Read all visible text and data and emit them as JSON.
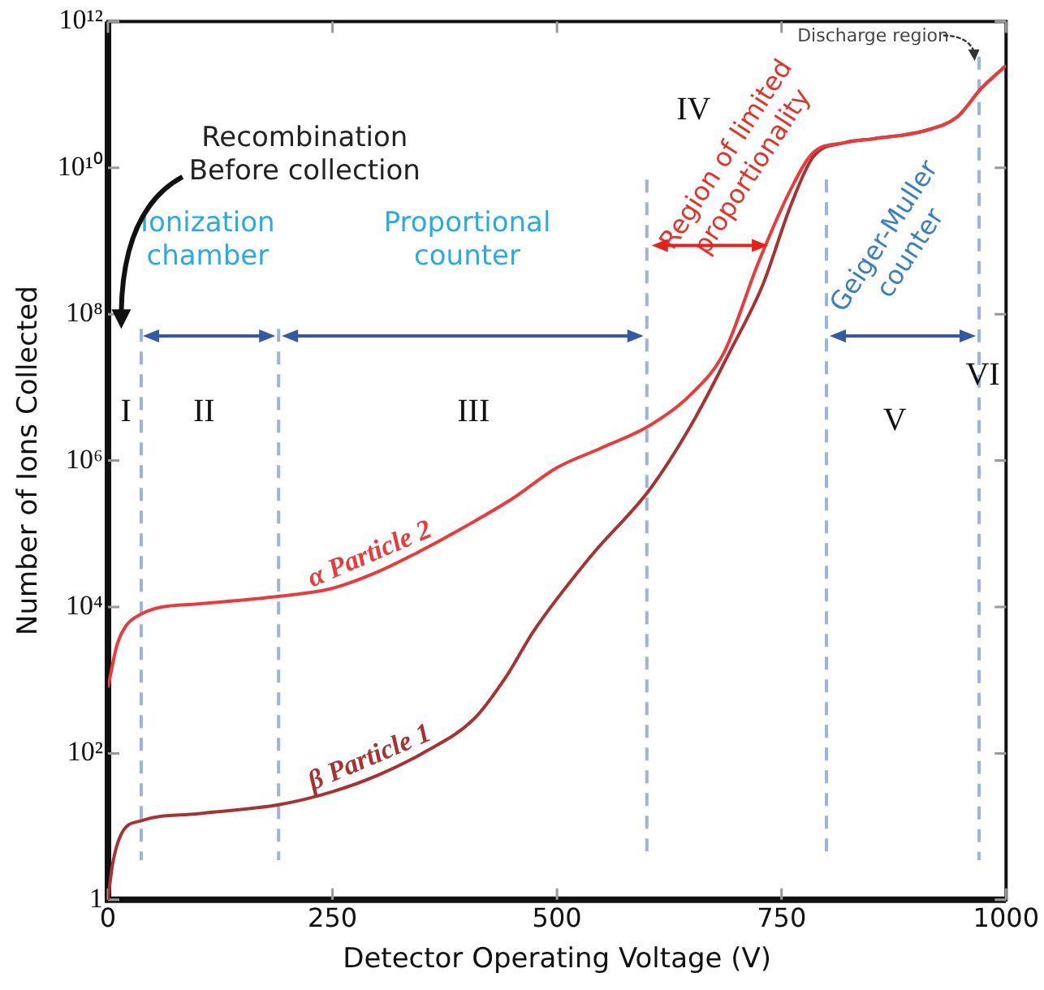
{
  "chart_data": {
    "type": "line",
    "xlabel": "Detector Operating Voltage (V)",
    "ylabel": "Number of Ions Collected",
    "log": "y",
    "grid": false,
    "legend": false,
    "marker": "none",
    "line_style": "solid",
    "xlim": [
      0,
      1000
    ],
    "xticks": [
      0,
      250,
      500,
      750,
      1000
    ],
    "ylim": [
      1,
      1000000000000
    ],
    "yticks": [
      1,
      {
        "value": 100,
        "label": "10²"
      },
      {
        "value": 10000,
        "label": "10⁴"
      },
      {
        "value": 1000000,
        "label": "10⁶"
      },
      {
        "value": 100000000,
        "label": "10⁸"
      },
      {
        "value": 10000000000,
        "label": "10¹⁰"
      },
      {
        "value": 1000000000000,
        "label": "10¹²"
      }
    ],
    "series": [
      {
        "name": "α Particle 2",
        "color": "#ec3a3a",
        "x": [
          0,
          10,
          20,
          37,
          60,
          100,
          191,
          250,
          300,
          350,
          400,
          450,
          500,
          550,
          603,
          649,
          686,
          724,
          760,
          785,
          820,
          853,
          909,
          946,
          972,
          1000
        ],
        "values": [
          800,
          3000,
          5500,
          8000,
          10000,
          11000,
          14000,
          18000,
          30000,
          60000,
          130000,
          300000,
          800000,
          1500000,
          3000000,
          8000000,
          30000000,
          500000000,
          5000000000,
          16000000000,
          22000000000,
          25000000000,
          32000000000,
          50000000000,
          120000000000,
          250000000000
        ]
      },
      {
        "name": "β Particle 1",
        "color": "#a83232",
        "x": [
          0,
          5,
          15,
          37,
          100,
          191,
          250,
          300,
          350,
          408,
          445,
          473,
          538,
          603,
          649,
          692,
          729,
          760,
          785,
          820,
          853,
          909,
          946,
          972,
          1000
        ],
        "values": [
          1,
          3,
          8,
          12,
          15,
          20,
          30,
          50,
          100,
          300,
          1200,
          4500,
          50000,
          400000,
          3000000,
          30000000,
          250000000,
          3000000000,
          14000000000,
          22000000000,
          25000000000,
          32000000000,
          50000000000,
          120000000000,
          250000000000
        ]
      }
    ],
    "ref_lines": [
      {
        "axis": "x",
        "value": 37,
        "color": "#9db3dd",
        "line_style": "dashed"
      },
      {
        "axis": "x",
        "value": 190,
        "color": "#9db3dd",
        "line_style": "dashed"
      },
      {
        "axis": "x",
        "value": 600,
        "color": "#9db3dd",
        "line_style": "dashed"
      },
      {
        "axis": "x",
        "value": 800,
        "color": "#9db3dd",
        "line_style": "dashed"
      },
      {
        "axis": "x",
        "value": 970,
        "color": "#9db3dd",
        "line_style": "dashed"
      }
    ],
    "annotations": [
      "Recombination Before collection",
      "Ionization chamber",
      "Proportional counter",
      "Region of limited proportionality",
      "Geiger-Muller counter",
      "Discharge region",
      "I",
      "II",
      "III",
      "IV",
      "V",
      "VI"
    ]
  }
}
